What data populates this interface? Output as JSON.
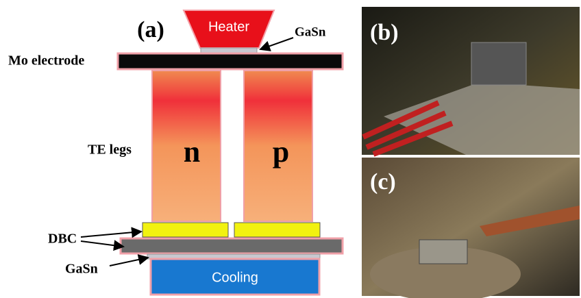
{
  "panel_a": {
    "label": "(a)",
    "heater": "Heater",
    "top_solder": "GaSn",
    "electrode": "Mo electrode",
    "legs": "TE legs",
    "n_leg": "n",
    "p_leg": "p",
    "substrate": "DBC",
    "bottom_solder": "GaSn",
    "cooling": "Cooling"
  },
  "panel_b": {
    "label": "(b)"
  },
  "panel_c": {
    "label": "(c)"
  }
}
